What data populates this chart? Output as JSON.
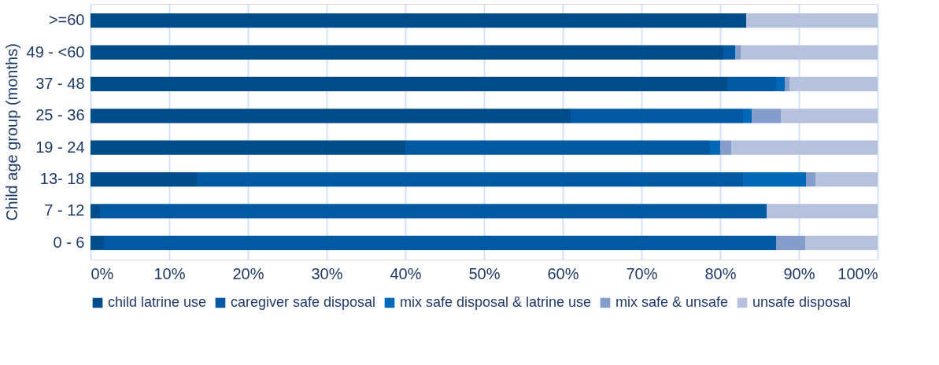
{
  "chart_data": {
    "type": "bar",
    "orientation": "horizontal",
    "stacked": true,
    "ylabel": "Child age group (months)",
    "categories": [
      ">=60",
      "49 - <60",
      "37 - 48",
      "25 - 36",
      "19 - 24",
      "13- 18",
      "7 - 12",
      "0 - 6"
    ],
    "series": [
      {
        "name": "child latrine use",
        "color": "#004c8a",
        "values": [
          83.3,
          80.4,
          80.9,
          61.0,
          40.0,
          13.5,
          1.2,
          1.7
        ]
      },
      {
        "name": "caregiver safe disposal",
        "color": "#0059a2",
        "values": [
          null,
          1.5,
          6.2,
          21.9,
          38.7,
          69.4,
          84.7,
          85.4
        ]
      },
      {
        "name": "mix safe disposal & latrine use",
        "color": "#0068b8",
        "values": [
          null,
          null,
          1.1,
          1.1,
          1.3,
          8.0,
          null,
          null
        ]
      },
      {
        "name": "mix safe & unsafe",
        "color": "#859dcb",
        "values": [
          null,
          0.7,
          0.6,
          3.7,
          1.4,
          1.2,
          null,
          3.7
        ]
      },
      {
        "name": "unsafe disposal",
        "color": "#b6c1de",
        "values": [
          16.7,
          17.4,
          11.2,
          12.3,
          18.6,
          7.9,
          14.1,
          9.2
        ]
      }
    ],
    "xlim": [
      0,
      100
    ],
    "xticks": [
      {
        "value": 0,
        "label": "0%"
      },
      {
        "value": 10,
        "label": "10%"
      },
      {
        "value": 20,
        "label": "20%"
      },
      {
        "value": 30,
        "label": "30%"
      },
      {
        "value": 40,
        "label": "40%"
      },
      {
        "value": 50,
        "label": "50%"
      },
      {
        "value": 60,
        "label": "60%"
      },
      {
        "value": 70,
        "label": "70%"
      },
      {
        "value": 80,
        "label": "80%"
      },
      {
        "value": 90,
        "label": "90%"
      },
      {
        "value": 100,
        "label": "100%"
      }
    ],
    "grid": "x",
    "legend": "bottom"
  }
}
